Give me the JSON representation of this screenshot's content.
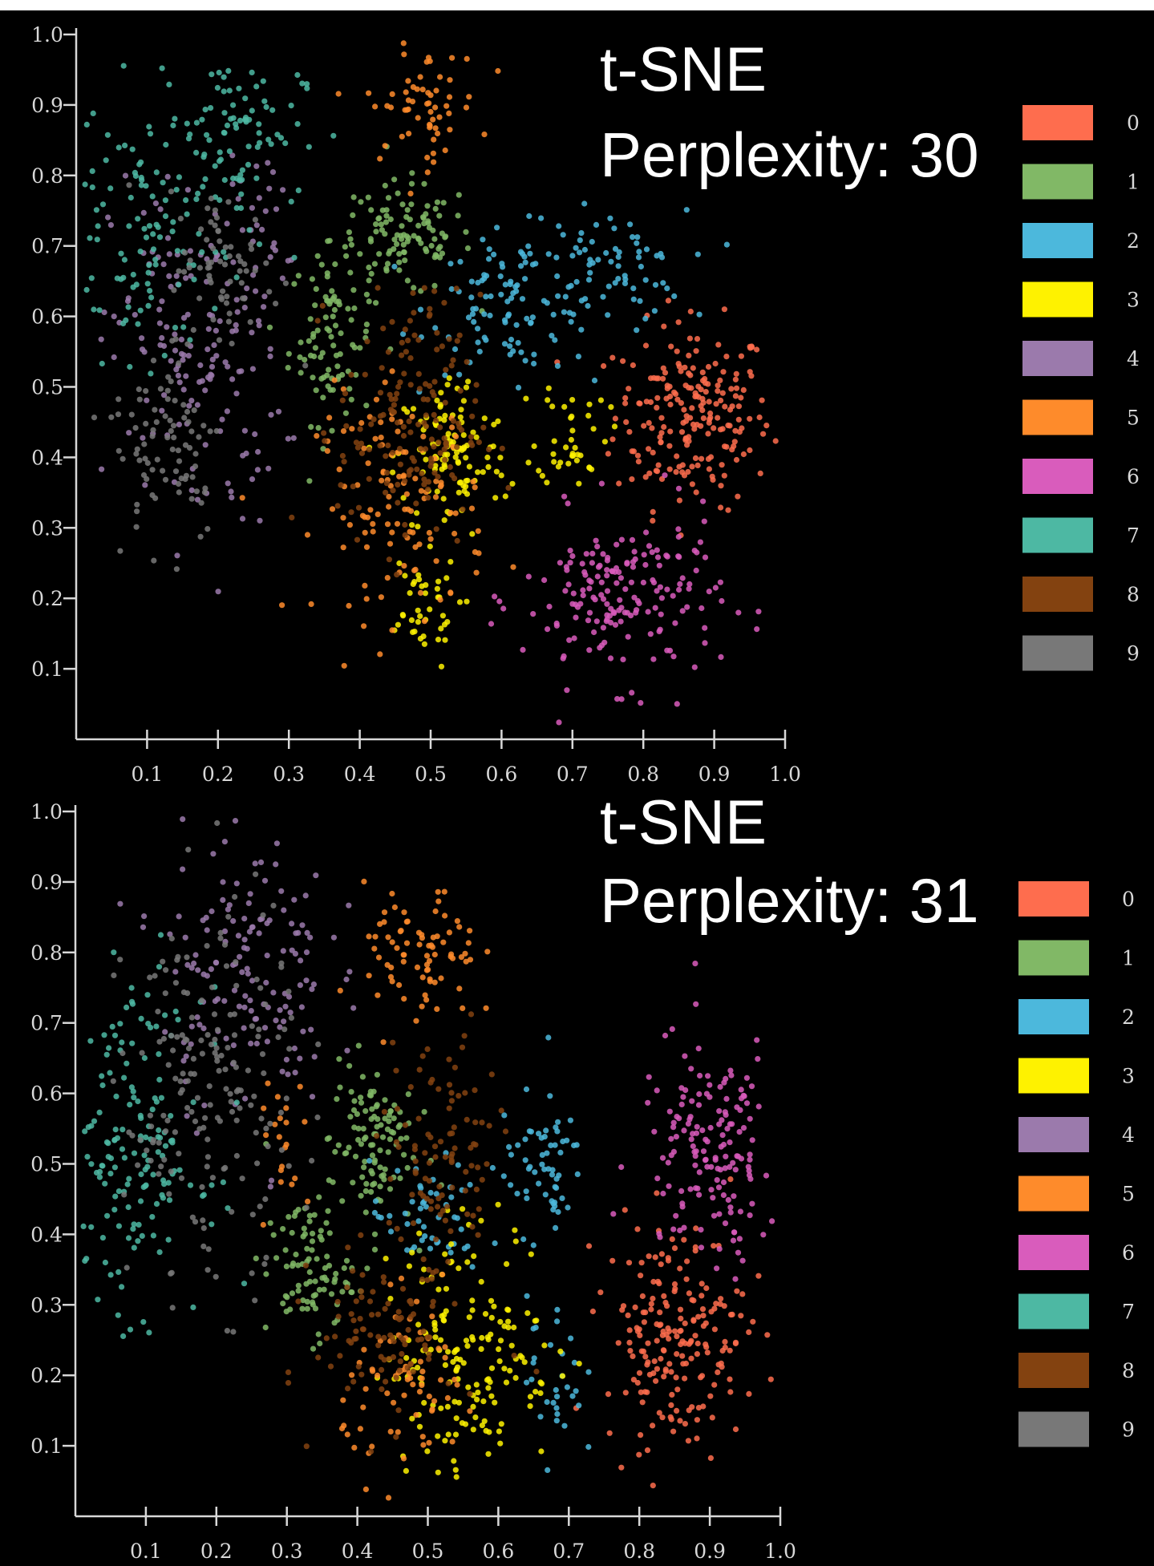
{
  "chart_data": [
    {
      "type": "scatter",
      "title_line1": "t-SNE",
      "title_line2": "Perplexity: 30",
      "xlim": [
        0,
        1.0
      ],
      "ylim": [
        0,
        1.0
      ],
      "xticks": [
        "0.1",
        "0.2",
        "0.3",
        "0.4",
        "0.5",
        "0.6",
        "0.7",
        "0.8",
        "0.9",
        "1.0"
      ],
      "yticks": [
        "0.1",
        "0.2",
        "0.3",
        "0.4",
        "0.5",
        "0.6",
        "0.7",
        "0.8",
        "0.9",
        "1.0"
      ],
      "grid": false,
      "legend_placement": "right",
      "legend": [
        "0",
        "1",
        "2",
        "3",
        "4",
        "5",
        "6",
        "7",
        "8",
        "9"
      ],
      "colors": [
        "#fe6d4e",
        "#81b866",
        "#4cb8dc",
        "#fef200",
        "#9b7aac",
        "#fe8b2b",
        "#d95cbc",
        "#4db8a3",
        "#834210",
        "#787878"
      ],
      "clusters_note_fields": [
        "class",
        "x",
        "y",
        "sd_x",
        "sd_y",
        "count"
      ],
      "clusters": [
        [
          0,
          0.87,
          0.46,
          0.055,
          0.065,
          210
        ],
        [
          1,
          0.36,
          0.57,
          0.03,
          0.06,
          90
        ],
        [
          1,
          0.46,
          0.71,
          0.05,
          0.04,
          110
        ],
        [
          2,
          0.62,
          0.62,
          0.06,
          0.05,
          110
        ],
        [
          2,
          0.76,
          0.67,
          0.05,
          0.04,
          60
        ],
        [
          3,
          0.53,
          0.4,
          0.04,
          0.06,
          110
        ],
        [
          3,
          0.7,
          0.44,
          0.025,
          0.04,
          40
        ],
        [
          3,
          0.48,
          0.18,
          0.03,
          0.04,
          40
        ],
        [
          4,
          0.17,
          0.55,
          0.06,
          0.13,
          160
        ],
        [
          4,
          0.27,
          0.72,
          0.02,
          0.06,
          20
        ],
        [
          5,
          0.49,
          0.9,
          0.04,
          0.04,
          60
        ],
        [
          5,
          0.46,
          0.33,
          0.06,
          0.08,
          120
        ],
        [
          6,
          0.77,
          0.2,
          0.07,
          0.06,
          180
        ],
        [
          7,
          0.1,
          0.72,
          0.07,
          0.09,
          120
        ],
        [
          7,
          0.22,
          0.87,
          0.05,
          0.05,
          80
        ],
        [
          8,
          0.47,
          0.45,
          0.05,
          0.09,
          170
        ],
        [
          9,
          0.13,
          0.42,
          0.04,
          0.07,
          80
        ],
        [
          9,
          0.21,
          0.66,
          0.04,
          0.06,
          70
        ]
      ]
    },
    {
      "type": "scatter",
      "title_line1": "t-SNE",
      "title_line2": "Perplexity: 31",
      "xlim": [
        0,
        1.0
      ],
      "ylim": [
        0,
        1.0
      ],
      "xticks": [
        "0.1",
        "0.2",
        "0.3",
        "0.4",
        "0.5",
        "0.6",
        "0.7",
        "0.8",
        "0.9",
        "1.0"
      ],
      "yticks": [
        "0.1",
        "0.2",
        "0.3",
        "0.4",
        "0.5",
        "0.6",
        "0.7",
        "0.8",
        "0.9",
        "1.0"
      ],
      "grid": false,
      "legend_placement": "right",
      "legend": [
        "0",
        "1",
        "2",
        "3",
        "4",
        "5",
        "6",
        "7",
        "8",
        "9"
      ],
      "colors": [
        "#fe6d4e",
        "#81b866",
        "#4cb8dc",
        "#fef200",
        "#9b7aac",
        "#fe8b2b",
        "#d95cbc",
        "#4db8a3",
        "#834210",
        "#787878"
      ],
      "clusters_note_fields": [
        "class",
        "x",
        "y",
        "sd_x",
        "sd_y",
        "count"
      ],
      "clusters": [
        [
          0,
          0.85,
          0.26,
          0.05,
          0.08,
          200
        ],
        [
          1,
          0.33,
          0.35,
          0.03,
          0.05,
          90
        ],
        [
          1,
          0.42,
          0.53,
          0.03,
          0.06,
          110
        ],
        [
          2,
          0.66,
          0.5,
          0.03,
          0.05,
          60
        ],
        [
          2,
          0.5,
          0.42,
          0.04,
          0.04,
          50
        ],
        [
          2,
          0.68,
          0.2,
          0.02,
          0.06,
          30
        ],
        [
          3,
          0.56,
          0.24,
          0.06,
          0.09,
          170
        ],
        [
          4,
          0.24,
          0.78,
          0.06,
          0.1,
          150
        ],
        [
          5,
          0.49,
          0.79,
          0.04,
          0.05,
          80
        ],
        [
          5,
          0.48,
          0.18,
          0.05,
          0.06,
          70
        ],
        [
          5,
          0.3,
          0.52,
          0.02,
          0.06,
          20
        ],
        [
          6,
          0.9,
          0.52,
          0.05,
          0.08,
          160
        ],
        [
          7,
          0.08,
          0.52,
          0.05,
          0.11,
          170
        ],
        [
          8,
          0.52,
          0.5,
          0.04,
          0.09,
          100
        ],
        [
          8,
          0.44,
          0.26,
          0.05,
          0.06,
          100
        ],
        [
          9,
          0.19,
          0.6,
          0.06,
          0.14,
          180
        ]
      ]
    }
  ]
}
